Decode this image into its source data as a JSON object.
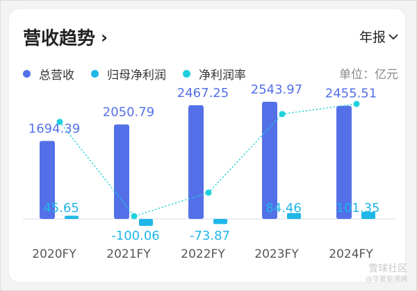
{
  "header": {
    "title": "营收趋势",
    "chevron": "›",
    "period": "年报",
    "period_icon": "chevron-down-icon"
  },
  "legend": [
    {
      "label": "总营收",
      "color": "#5470e8"
    },
    {
      "label": "归母净利润",
      "color": "#1fb6e8"
    },
    {
      "label": "净利润率",
      "color": "#1dd1dc"
    }
  ],
  "unit": "单位：亿元",
  "watermark": {
    "line1": "雪球社区",
    "line2": "@华夏能源网"
  },
  "chart_data": {
    "type": "bar",
    "categories": [
      "2020FY",
      "2021FY",
      "2022FY",
      "2023FY",
      "2024FY"
    ],
    "series": [
      {
        "name": "总营收",
        "values": [
          1694.39,
          2050.79,
          2467.25,
          2543.97,
          2455.51
        ],
        "color": "#5470e8",
        "labels": [
          "1694.39",
          "2050.79",
          "2467.25",
          "2543.97",
          "2455.51"
        ]
      },
      {
        "name": "归母净利润",
        "values": [
          45.65,
          -100.06,
          -73.87,
          84.46,
          101.35
        ],
        "color": "#1fb6e8",
        "labels": [
          "45.65",
          "-100.06",
          "-73.87",
          "84.46",
          "101.35"
        ]
      },
      {
        "name": "净利润率",
        "type": "line",
        "values": [
          2.69,
          -4.88,
          -2.99,
          3.32,
          4.13
        ],
        "color": "#1dd1dc"
      }
    ]
  }
}
